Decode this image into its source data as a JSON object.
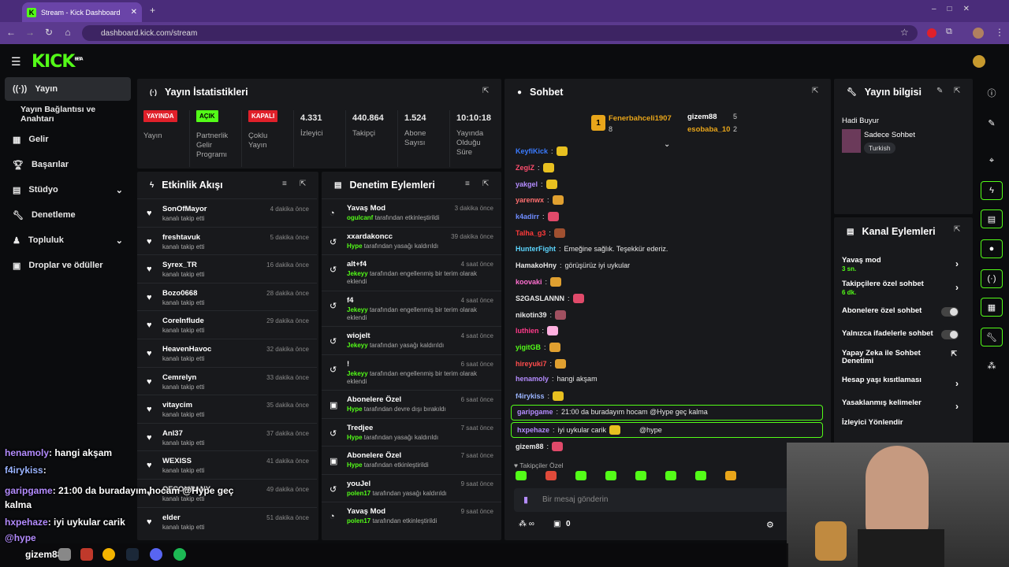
{
  "browser": {
    "tab_title": "Stream - Kick Dashboard",
    "url": "dashboard.kick.com/stream"
  },
  "kick": {
    "logo": "KICK",
    "logo_beta": "BETA"
  },
  "sidebar": {
    "items": [
      {
        "label": "Yayın",
        "icon": "broadcast-icon"
      },
      {
        "label": "Yayın Bağlantısı ve Anahtarı",
        "icon": ""
      },
      {
        "label": "Gelir",
        "icon": "revenue-icon"
      },
      {
        "label": "Başarılar",
        "icon": "trophy-icon"
      },
      {
        "label": "Stüdyo",
        "icon": "studio-icon"
      },
      {
        "label": "Denetleme",
        "icon": "wrench-icon"
      },
      {
        "label": "Topluluk",
        "icon": "community-icon"
      },
      {
        "label": "Droplar ve ödüller",
        "icon": "gift-icon"
      }
    ]
  },
  "stats": {
    "title": "Yayın İstatistikleri",
    "cells": [
      {
        "badge": "YAYINDA",
        "label": "Yayın",
        "color": "#e0202a"
      },
      {
        "badge": "AÇIK",
        "label": "Partnerlik Gelir Programı",
        "color": "#53fc18"
      },
      {
        "badge": "KAPALI",
        "label": "Çoklu Yayın",
        "color": "#e0202a"
      },
      {
        "value": "4.331",
        "label": "İzleyici"
      },
      {
        "value": "440.864",
        "label": "Takipçi"
      },
      {
        "value": "1.524",
        "label": "Abone Sayısı"
      },
      {
        "value": "10:10:18",
        "label": "Yayında Olduğu Süre"
      }
    ]
  },
  "activity": {
    "title": "Etkinlik Akışı",
    "items": [
      {
        "name": "SonOfMayor",
        "sub": "kanalı takip etti",
        "time": "4 dakika önce"
      },
      {
        "name": "freshtavuk",
        "sub": "kanalı takip etti",
        "time": "5 dakika önce"
      },
      {
        "name": "Syrex_TR",
        "sub": "kanalı takip etti",
        "time": "16 dakika önce"
      },
      {
        "name": "Bozo0668",
        "sub": "kanalı takip etti",
        "time": "28 dakika önce"
      },
      {
        "name": "CoreInflude",
        "sub": "kanalı takip etti",
        "time": "29 dakika önce"
      },
      {
        "name": "HeavenHavoc",
        "sub": "kanalı takip etti",
        "time": "32 dakika önce"
      },
      {
        "name": "Cemrelyn",
        "sub": "kanalı takip etti",
        "time": "33 dakika önce"
      },
      {
        "name": "vitaycim",
        "sub": "kanalı takip etti",
        "time": "35 dakika önce"
      },
      {
        "name": "Anl37",
        "sub": "kanalı takip etti",
        "time": "37 dakika önce"
      },
      {
        "name": "WEXISS",
        "sub": "kanalı takip etti",
        "time": "41 dakika önce"
      },
      {
        "name": "OFCOMPANY",
        "sub": "kanalı takip etti",
        "time": "49 dakika önce"
      },
      {
        "name": "elder",
        "sub": "kanalı takip etti",
        "time": "51 dakika önce"
      }
    ]
  },
  "moderation": {
    "title": "Denetim Eylemleri",
    "items": [
      {
        "name": "Yavaş Mod",
        "who": "ogulcanf",
        "sub": "tarafından etkinleştirildi",
        "time": "3 dakika önce",
        "icon": "slow-mode-icon"
      },
      {
        "name": "xxardakoncc",
        "who": "Hype",
        "sub": "tarafından yasağı kaldırıldı",
        "time": "39 dakika önce",
        "icon": "undo-icon"
      },
      {
        "name": "alt+f4",
        "who": "Jekeyy",
        "sub": "tarafından engellenmiş bir terim olarak eklendi",
        "time": "4 saat önce",
        "icon": "undo-icon"
      },
      {
        "name": "f4",
        "who": "Jekeyy",
        "sub": "tarafından engellenmiş bir terim olarak eklendi",
        "time": "4 saat önce",
        "icon": "undo-icon"
      },
      {
        "name": "wiojelt",
        "who": "Jekeyy",
        "sub": "tarafından yasağı kaldırıldı",
        "time": "4 saat önce",
        "icon": "undo-icon"
      },
      {
        "name": "!",
        "who": "Jekeyy",
        "sub": "tarafından engellenmiş bir terim olarak eklendi",
        "time": "6 saat önce",
        "icon": "undo-icon"
      },
      {
        "name": "Abonelere Özel",
        "who": "Hype",
        "sub": "tarafından devre dışı bırakıldı",
        "time": "6 saat önce",
        "icon": "gift-icon"
      },
      {
        "name": "Tredjee",
        "who": "Hype",
        "sub": "tarafından yasağı kaldırıldı",
        "time": "7 saat önce",
        "icon": "undo-icon"
      },
      {
        "name": "Abonelere Özel",
        "who": "Hype",
        "sub": "tarafından etkinleştirildi",
        "time": "7 saat önce",
        "icon": "gift-icon"
      },
      {
        "name": "youJel",
        "who": "polen17",
        "sub": "tarafından yasağı kaldırıldı",
        "time": "9 saat önce",
        "icon": "undo-icon"
      },
      {
        "name": "Yavaş Mod",
        "who": "polen17",
        "sub": "tarafından etkinleştirildi",
        "time": "9 saat önce",
        "icon": "slow-mode-icon"
      }
    ]
  },
  "chat": {
    "title": "Sohbet",
    "leaders": [
      {
        "name": "Fenerbahceli1907",
        "count": "8"
      },
      {
        "name": "gizem88",
        "count": "5"
      },
      {
        "name": "esobaba_10",
        "count": "2"
      }
    ],
    "messages": [
      {
        "user": "KeyfiKick",
        "color": "#3a7bff",
        "text": ""
      },
      {
        "user": "ZegiZ",
        "color": "#ff4d6d",
        "text": ""
      },
      {
        "user": "yakgel",
        "color": "#b48cff",
        "text": ""
      },
      {
        "user": "yarenwx",
        "color": "#ff6f6f",
        "text": ""
      },
      {
        "user": "k4adirr",
        "color": "#6f8cff",
        "text": ""
      },
      {
        "user": "Talha_g3",
        "color": "#ff3a3a",
        "text": ""
      },
      {
        "user": "HunterFight",
        "color": "#5cd6ff",
        "text": "Emeğine sağlık. Teşekkür ederiz."
      },
      {
        "user": "HamakoHny",
        "color": "#e8e8e8",
        "text": "görüşürüz iyi uykular"
      },
      {
        "user": "koovaki",
        "color": "#ff6fd0",
        "text": ""
      },
      {
        "user": "S2GASLANNN",
        "color": "#e8e8e8",
        "text": ""
      },
      {
        "user": "nikotin39",
        "color": "#e8e8e8",
        "text": ""
      },
      {
        "user": "luthien",
        "color": "#ff3a8a",
        "text": ""
      },
      {
        "user": "yigitGB",
        "color": "#53fc18",
        "text": ""
      },
      {
        "user": "hireyuki7",
        "color": "#ff4d4d",
        "text": ""
      },
      {
        "user": "henamoly",
        "color": "#b48cff",
        "text": "hangi akşam"
      },
      {
        "user": "f4irykiss",
        "color": "#9ab4ff",
        "text": ""
      },
      {
        "user": "garipgame",
        "color": "#b48cff",
        "text": "21:00 da buradayım hocam @Hype geç kalma"
      },
      {
        "user": "hxpehaze",
        "color": "#b48cff",
        "text": "iyi uykular carik"
      },
      {
        "user": "gizem88",
        "color": "#e8e8e8",
        "text": ""
      }
    ],
    "hype_tag": "@hype",
    "follower_only": "Takipçiler Özel",
    "input_placeholder": "Bir mesaj gönderin",
    "points": "0"
  },
  "info": {
    "title": "Yayın bilgisi",
    "stream_title": "Hadi Buyur",
    "category": "Sadece Sohbet",
    "language": "Turkish"
  },
  "actions": {
    "title": "Kanal Eylemleri",
    "items": [
      {
        "label": "Yavaş mod",
        "sub": "3 sn.",
        "type": "chevron"
      },
      {
        "label": "Takipçilere özel sohbet",
        "sub": "6 dk.",
        "type": "chevron"
      },
      {
        "label": "Abonelere özel sohbet",
        "sub": "",
        "type": "toggle"
      },
      {
        "label": "Yalnızca ifadelerle sohbet",
        "sub": "",
        "type": "toggle"
      },
      {
        "label": "Yapay Zeka ile Sohbet Denetimi",
        "sub": "",
        "type": "external"
      },
      {
        "label": "Hesap yaşı kısıtlaması",
        "sub": "",
        "type": "chevron"
      },
      {
        "label": "Yasaklanmış kelimeler",
        "sub": "",
        "type": "chevron"
      },
      {
        "label": "İzleyici Yönlendir",
        "sub": "",
        "type": "none"
      }
    ]
  },
  "overlay": {
    "lines": [
      {
        "user": "henamoly",
        "text": ": hangi akşam",
        "color": "#b48cff"
      },
      {
        "user": "f4irykiss",
        "text": ":",
        "color": "#9ab4ff"
      },
      {
        "user": "garipgame",
        "text": ": 21:00 da buradayım hocam @Hype geç kalma",
        "color": "#b48cff"
      },
      {
        "user": "hxpehaze",
        "text": ": iyi uykular carik",
        "color": "#b48cff"
      },
      {
        "user": "",
        "text": "@hype",
        "color": "#b48cff"
      }
    ],
    "taskbar_user": "gizem88"
  },
  "colors": {
    "accent": "#53fc18",
    "panel": "#18191c",
    "live": "#e0202a"
  }
}
